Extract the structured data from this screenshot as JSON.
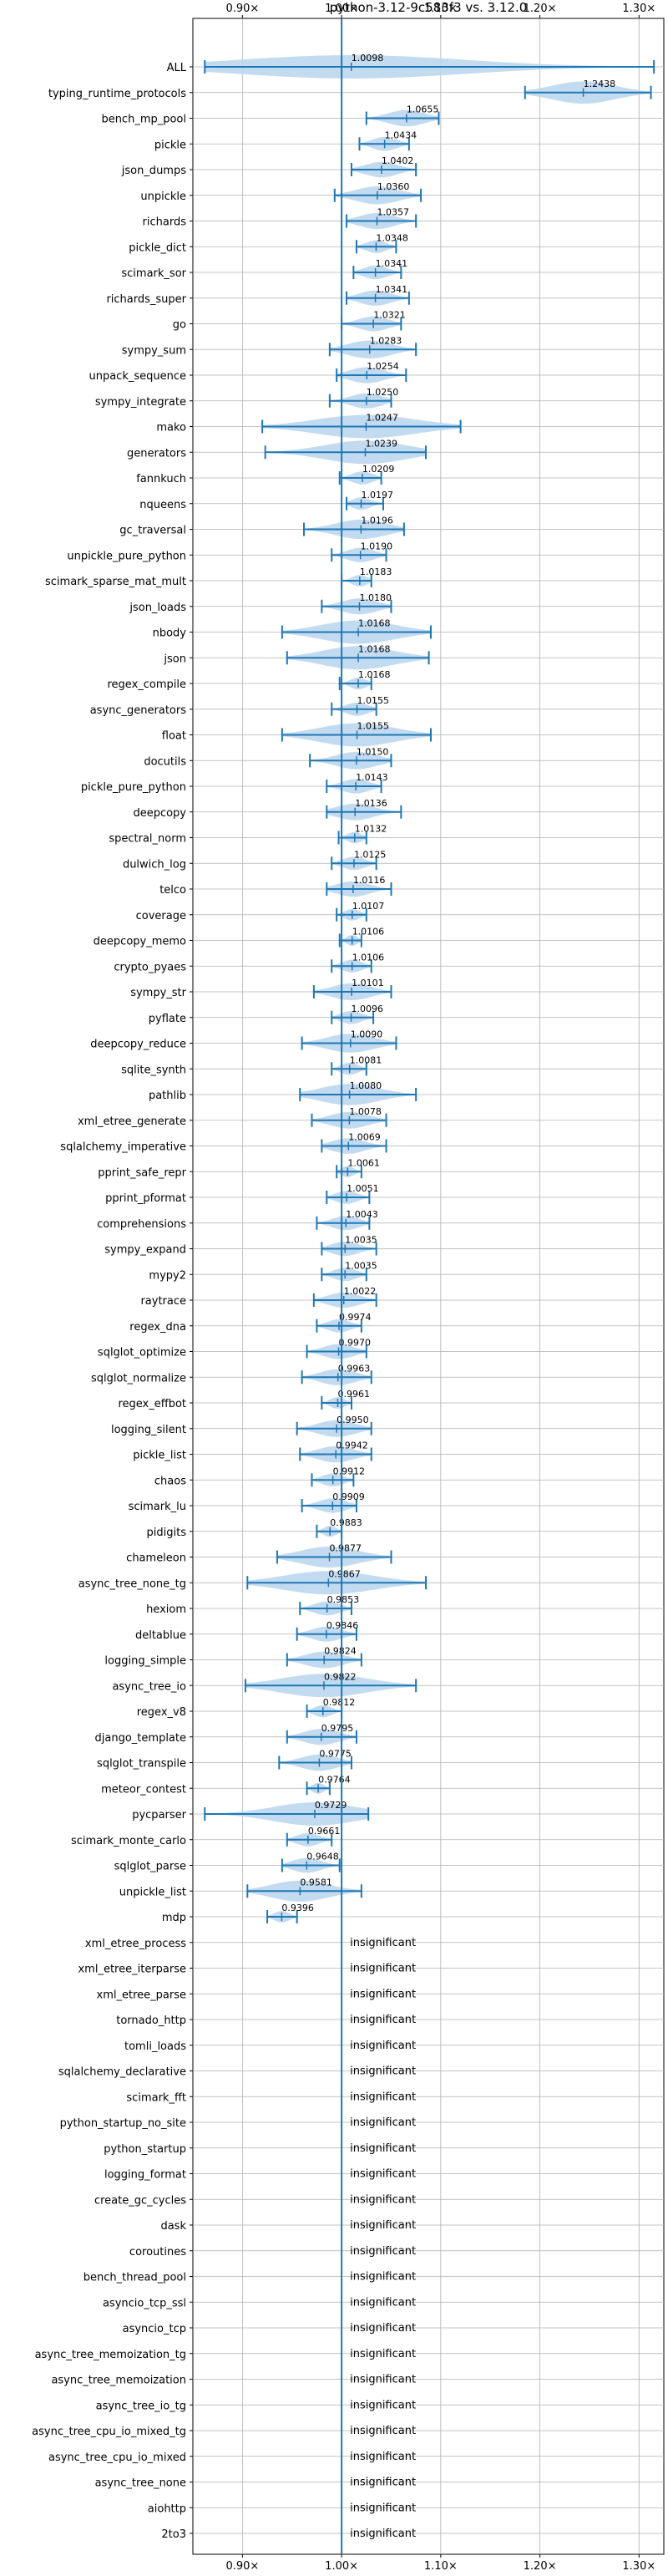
{
  "chart_data": {
    "type": "violin",
    "title": "python-3.12-9c583f3 vs. 3.12.0",
    "xlabel": "",
    "ylabel": "",
    "x_ticks": [
      0.9,
      1.0,
      1.1,
      1.2,
      1.3
    ],
    "x_tick_labels": [
      "0.90×",
      "1.00×",
      "1.10×",
      "1.20×",
      "1.30×"
    ],
    "xlim": [
      0.85,
      1.325
    ],
    "reference_line": 1.0,
    "grid": true,
    "insignificant_label": "insignificant",
    "colors": {
      "violin": "#bcd7ee",
      "line": "#1f77b4",
      "grid": "#b0b0b0"
    },
    "benchmarks": [
      {
        "name": "ALL",
        "value": 1.0098,
        "low": 0.862,
        "high": 1.315
      },
      {
        "name": "typing_runtime_protocols",
        "value": 1.2438,
        "low": 1.185,
        "high": 1.312
      },
      {
        "name": "bench_mp_pool",
        "value": 1.0655,
        "low": 1.025,
        "high": 1.098
      },
      {
        "name": "pickle",
        "value": 1.0434,
        "low": 1.018,
        "high": 1.068
      },
      {
        "name": "json_dumps",
        "value": 1.0402,
        "low": 1.01,
        "high": 1.075
      },
      {
        "name": "unpickle",
        "value": 1.036,
        "low": 0.993,
        "high": 1.08
      },
      {
        "name": "richards",
        "value": 1.0357,
        "low": 1.005,
        "high": 1.075
      },
      {
        "name": "pickle_dict",
        "value": 1.0348,
        "low": 1.015,
        "high": 1.055
      },
      {
        "name": "scimark_sor",
        "value": 1.0341,
        "low": 1.012,
        "high": 1.06
      },
      {
        "name": "richards_super",
        "value": 1.0341,
        "low": 1.005,
        "high": 1.068
      },
      {
        "name": "go",
        "value": 1.0321,
        "low": 1.0,
        "high": 1.06
      },
      {
        "name": "sympy_sum",
        "value": 1.0283,
        "low": 0.988,
        "high": 1.075
      },
      {
        "name": "unpack_sequence",
        "value": 1.0254,
        "low": 0.995,
        "high": 1.065
      },
      {
        "name": "sympy_integrate",
        "value": 1.025,
        "low": 0.988,
        "high": 1.05
      },
      {
        "name": "mako",
        "value": 1.0247,
        "low": 0.92,
        "high": 1.12
      },
      {
        "name": "generators",
        "value": 1.0239,
        "low": 0.923,
        "high": 1.085
      },
      {
        "name": "fannkuch",
        "value": 1.0209,
        "low": 0.998,
        "high": 1.04
      },
      {
        "name": "nqueens",
        "value": 1.0197,
        "low": 1.005,
        "high": 1.042
      },
      {
        "name": "gc_traversal",
        "value": 1.0196,
        "low": 0.962,
        "high": 1.063
      },
      {
        "name": "unpickle_pure_python",
        "value": 1.019,
        "low": 0.99,
        "high": 1.045
      },
      {
        "name": "scimark_sparse_mat_mult",
        "value": 1.0183,
        "low": 1.0,
        "high": 1.03
      },
      {
        "name": "json_loads",
        "value": 1.018,
        "low": 0.98,
        "high": 1.05
      },
      {
        "name": "nbody",
        "value": 1.0168,
        "low": 0.94,
        "high": 1.09
      },
      {
        "name": "json",
        "value": 1.0168,
        "low": 0.945,
        "high": 1.088
      },
      {
        "name": "regex_compile",
        "value": 1.0168,
        "low": 0.998,
        "high": 1.03
      },
      {
        "name": "async_generators",
        "value": 1.0155,
        "low": 0.99,
        "high": 1.035
      },
      {
        "name": "float",
        "value": 1.0155,
        "low": 0.94,
        "high": 1.09
      },
      {
        "name": "docutils",
        "value": 1.015,
        "low": 0.968,
        "high": 1.05
      },
      {
        "name": "pickle_pure_python",
        "value": 1.0143,
        "low": 0.985,
        "high": 1.04
      },
      {
        "name": "deepcopy",
        "value": 1.0136,
        "low": 0.985,
        "high": 1.06
      },
      {
        "name": "spectral_norm",
        "value": 1.0132,
        "low": 0.997,
        "high": 1.025
      },
      {
        "name": "dulwich_log",
        "value": 1.0125,
        "low": 0.99,
        "high": 1.035
      },
      {
        "name": "telco",
        "value": 1.0116,
        "low": 0.985,
        "high": 1.05
      },
      {
        "name": "coverage",
        "value": 1.0107,
        "low": 0.995,
        "high": 1.025
      },
      {
        "name": "deepcopy_memo",
        "value": 1.0106,
        "low": 0.998,
        "high": 1.02
      },
      {
        "name": "crypto_pyaes",
        "value": 1.0106,
        "low": 0.99,
        "high": 1.03
      },
      {
        "name": "sympy_str",
        "value": 1.0101,
        "low": 0.972,
        "high": 1.05
      },
      {
        "name": "pyflate",
        "value": 1.0096,
        "low": 0.99,
        "high": 1.032
      },
      {
        "name": "deepcopy_reduce",
        "value": 1.009,
        "low": 0.96,
        "high": 1.055
      },
      {
        "name": "sqlite_synth",
        "value": 1.0081,
        "low": 0.99,
        "high": 1.025
      },
      {
        "name": "pathlib",
        "value": 1.008,
        "low": 0.958,
        "high": 1.075
      },
      {
        "name": "xml_etree_generate",
        "value": 1.0078,
        "low": 0.97,
        "high": 1.045
      },
      {
        "name": "sqlalchemy_imperative",
        "value": 1.0069,
        "low": 0.98,
        "high": 1.045
      },
      {
        "name": "pprint_safe_repr",
        "value": 1.0061,
        "low": 0.995,
        "high": 1.02
      },
      {
        "name": "pprint_pformat",
        "value": 1.0051,
        "low": 0.985,
        "high": 1.028
      },
      {
        "name": "comprehensions",
        "value": 1.0043,
        "low": 0.975,
        "high": 1.028
      },
      {
        "name": "sympy_expand",
        "value": 1.0035,
        "low": 0.98,
        "high": 1.035
      },
      {
        "name": "mypy2",
        "value": 1.0035,
        "low": 0.98,
        "high": 1.025
      },
      {
        "name": "raytrace",
        "value": 1.0022,
        "low": 0.972,
        "high": 1.035
      },
      {
        "name": "regex_dna",
        "value": 0.9974,
        "low": 0.975,
        "high": 1.02
      },
      {
        "name": "sqlglot_optimize",
        "value": 0.997,
        "low": 0.965,
        "high": 1.025
      },
      {
        "name": "sqlglot_normalize",
        "value": 0.9963,
        "low": 0.96,
        "high": 1.03
      },
      {
        "name": "regex_effbot",
        "value": 0.9961,
        "low": 0.98,
        "high": 1.01
      },
      {
        "name": "logging_silent",
        "value": 0.995,
        "low": 0.955,
        "high": 1.03
      },
      {
        "name": "pickle_list",
        "value": 0.9942,
        "low": 0.958,
        "high": 1.03
      },
      {
        "name": "chaos",
        "value": 0.9912,
        "low": 0.97,
        "high": 1.012
      },
      {
        "name": "scimark_lu",
        "value": 0.9909,
        "low": 0.96,
        "high": 1.015
      },
      {
        "name": "pidigits",
        "value": 0.9883,
        "low": 0.975,
        "high": 1.0
      },
      {
        "name": "chameleon",
        "value": 0.9877,
        "low": 0.935,
        "high": 1.05
      },
      {
        "name": "async_tree_none_tg",
        "value": 0.9867,
        "low": 0.905,
        "high": 1.085
      },
      {
        "name": "hexiom",
        "value": 0.9853,
        "low": 0.958,
        "high": 1.01
      },
      {
        "name": "deltablue",
        "value": 0.9846,
        "low": 0.955,
        "high": 1.015
      },
      {
        "name": "logging_simple",
        "value": 0.9824,
        "low": 0.945,
        "high": 1.02
      },
      {
        "name": "async_tree_io",
        "value": 0.9822,
        "low": 0.903,
        "high": 1.075
      },
      {
        "name": "regex_v8",
        "value": 0.9812,
        "low": 0.965,
        "high": 1.0
      },
      {
        "name": "django_template",
        "value": 0.9795,
        "low": 0.945,
        "high": 1.015
      },
      {
        "name": "sqlglot_transpile",
        "value": 0.9775,
        "low": 0.937,
        "high": 1.01
      },
      {
        "name": "meteor_contest",
        "value": 0.9764,
        "low": 0.965,
        "high": 0.988
      },
      {
        "name": "pycparser",
        "value": 0.9729,
        "low": 0.862,
        "high": 1.027
      },
      {
        "name": "scimark_monte_carlo",
        "value": 0.9661,
        "low": 0.945,
        "high": 0.99
      },
      {
        "name": "sqlglot_parse",
        "value": 0.9648,
        "low": 0.94,
        "high": 0.998
      },
      {
        "name": "unpickle_list",
        "value": 0.9581,
        "low": 0.905,
        "high": 1.02
      },
      {
        "name": "mdp",
        "value": 0.9396,
        "low": 0.925,
        "high": 0.955
      },
      {
        "name": "xml_etree_process",
        "insignificant": true
      },
      {
        "name": "xml_etree_iterparse",
        "insignificant": true
      },
      {
        "name": "xml_etree_parse",
        "insignificant": true
      },
      {
        "name": "tornado_http",
        "insignificant": true
      },
      {
        "name": "tomli_loads",
        "insignificant": true
      },
      {
        "name": "sqlalchemy_declarative",
        "insignificant": true
      },
      {
        "name": "scimark_fft",
        "insignificant": true
      },
      {
        "name": "python_startup_no_site",
        "insignificant": true
      },
      {
        "name": "python_startup",
        "insignificant": true
      },
      {
        "name": "logging_format",
        "insignificant": true
      },
      {
        "name": "create_gc_cycles",
        "insignificant": true
      },
      {
        "name": "dask",
        "insignificant": true
      },
      {
        "name": "coroutines",
        "insignificant": true
      },
      {
        "name": "bench_thread_pool",
        "insignificant": true
      },
      {
        "name": "asyncio_tcp_ssl",
        "insignificant": true
      },
      {
        "name": "asyncio_tcp",
        "insignificant": true
      },
      {
        "name": "async_tree_memoization_tg",
        "insignificant": true
      },
      {
        "name": "async_tree_memoization",
        "insignificant": true
      },
      {
        "name": "async_tree_io_tg",
        "insignificant": true
      },
      {
        "name": "async_tree_cpu_io_mixed_tg",
        "insignificant": true
      },
      {
        "name": "async_tree_cpu_io_mixed",
        "insignificant": true
      },
      {
        "name": "async_tree_none",
        "insignificant": true
      },
      {
        "name": "aiohttp",
        "insignificant": true
      },
      {
        "name": "2to3",
        "insignificant": true
      }
    ]
  }
}
